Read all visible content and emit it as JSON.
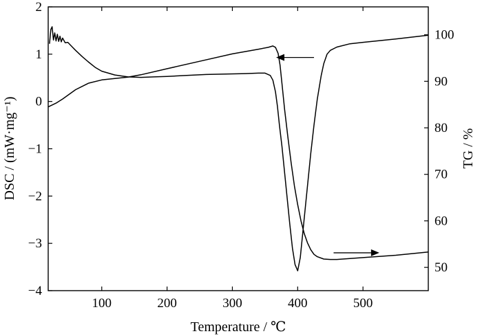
{
  "chart_data": {
    "type": "line",
    "xlabel": "Temperature / ℃",
    "ylabel_left": "DSC / (mW·mg⁻¹)",
    "ylabel_right": "TG / %",
    "xlim": [
      18,
      600
    ],
    "ylim_left": [
      -4,
      2
    ],
    "ylim_right": [
      45,
      106
    ],
    "x_ticks": [
      100,
      200,
      300,
      400,
      500
    ],
    "y_ticks_left": [
      2,
      1,
      0,
      -1,
      -2,
      -3,
      -4
    ],
    "y_ticks_left_text": [
      "2",
      "1",
      "0",
      "−1",
      "−2",
      "−3",
      "−4"
    ],
    "y_ticks_right": [
      100,
      90,
      80,
      70,
      60,
      50
    ],
    "grid": false,
    "series": [
      {
        "axis": "left",
        "x": [
          20,
          22,
          24,
          26,
          28,
          30,
          32,
          34,
          36,
          38,
          40,
          44,
          48,
          55,
          60,
          70,
          80,
          90,
          100,
          110,
          120,
          140,
          160,
          180,
          200,
          230,
          260,
          290,
          320,
          340,
          350,
          358,
          362,
          366,
          369,
          372,
          376,
          380,
          384,
          388,
          392,
          396,
          400,
          404,
          408,
          412,
          416,
          420,
          425,
          430,
          436,
          440,
          445,
          450,
          460,
          480,
          500,
          550,
          600
        ],
        "y": [
          1.22,
          1.52,
          1.58,
          1.3,
          1.45,
          1.28,
          1.42,
          1.27,
          1.38,
          1.26,
          1.34,
          1.24,
          1.25,
          1.15,
          1.08,
          0.95,
          0.83,
          0.72,
          0.64,
          0.6,
          0.56,
          0.52,
          0.51,
          0.52,
          0.53,
          0.55,
          0.57,
          0.58,
          0.59,
          0.6,
          0.6,
          0.55,
          0.45,
          0.2,
          -0.1,
          -0.5,
          -0.95,
          -1.5,
          -2.05,
          -2.6,
          -3.1,
          -3.45,
          -3.58,
          -3.3,
          -2.75,
          -2.2,
          -1.65,
          -1.1,
          -0.5,
          0.05,
          0.55,
          0.8,
          1.0,
          1.08,
          1.15,
          1.22,
          1.25,
          1.32,
          1.4
        ]
      },
      {
        "axis": "right",
        "x": [
          18,
          30,
          40,
          60,
          80,
          100,
          120,
          140,
          160,
          200,
          250,
          300,
          340,
          355,
          362,
          366,
          370,
          373,
          376,
          380,
          385,
          390,
          395,
          400,
          405,
          410,
          415,
          420,
          425,
          430,
          440,
          450,
          460,
          480,
          500,
          550,
          600
        ],
        "y": [
          84.5,
          85.3,
          86.2,
          88.2,
          89.6,
          90.3,
          90.6,
          90.9,
          91.4,
          92.7,
          94.3,
          95.9,
          96.9,
          97.3,
          97.6,
          97.3,
          96.0,
          93.5,
          89.5,
          84.0,
          78.0,
          72.5,
          67.5,
          63.5,
          60.0,
          57.3,
          55.3,
          53.8,
          52.8,
          52.3,
          51.8,
          51.7,
          51.7,
          51.9,
          52.1,
          52.6,
          53.3
        ]
      }
    ],
    "annotations": [
      {
        "type": "arrow",
        "direction": "left",
        "from": [
          425,
          0.93
        ],
        "to": [
          367,
          0.93
        ]
      },
      {
        "type": "arrow",
        "direction": "right",
        "from": [
          455,
          -3.2
        ],
        "to": [
          525,
          -3.2
        ]
      }
    ]
  }
}
